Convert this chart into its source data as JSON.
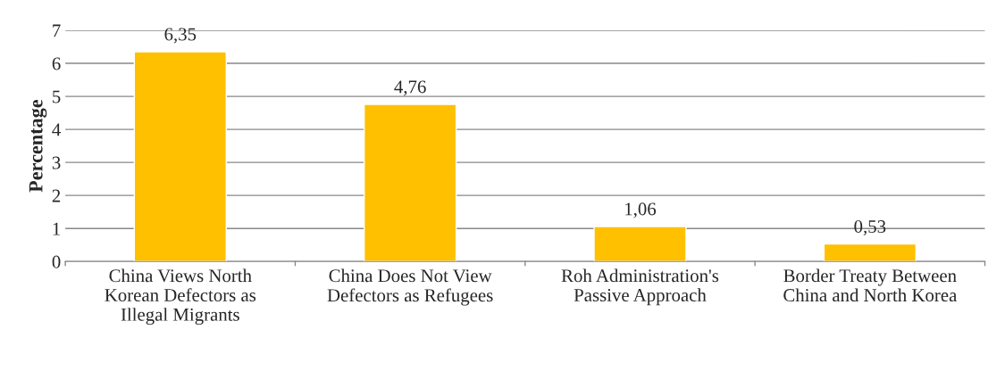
{
  "chart_data": {
    "type": "bar",
    "ylabel": "Percentage",
    "categories": [
      "China Views North Korean Defectors as Illegal Migrants",
      "China Does Not View Defectors as Refugees",
      "Roh Administration's Passive Approach",
      "Border Treaty Between China and North Korea"
    ],
    "values": [
      6.35,
      4.76,
      1.06,
      0.53
    ],
    "value_labels": [
      "6,35",
      "4,76",
      "1,06",
      "0,53"
    ],
    "color": "#ffc000",
    "ylim": [
      0,
      7
    ],
    "yticks": [
      0,
      1,
      2,
      3,
      4,
      5,
      6,
      7
    ],
    "grid": "y",
    "legend": false
  }
}
